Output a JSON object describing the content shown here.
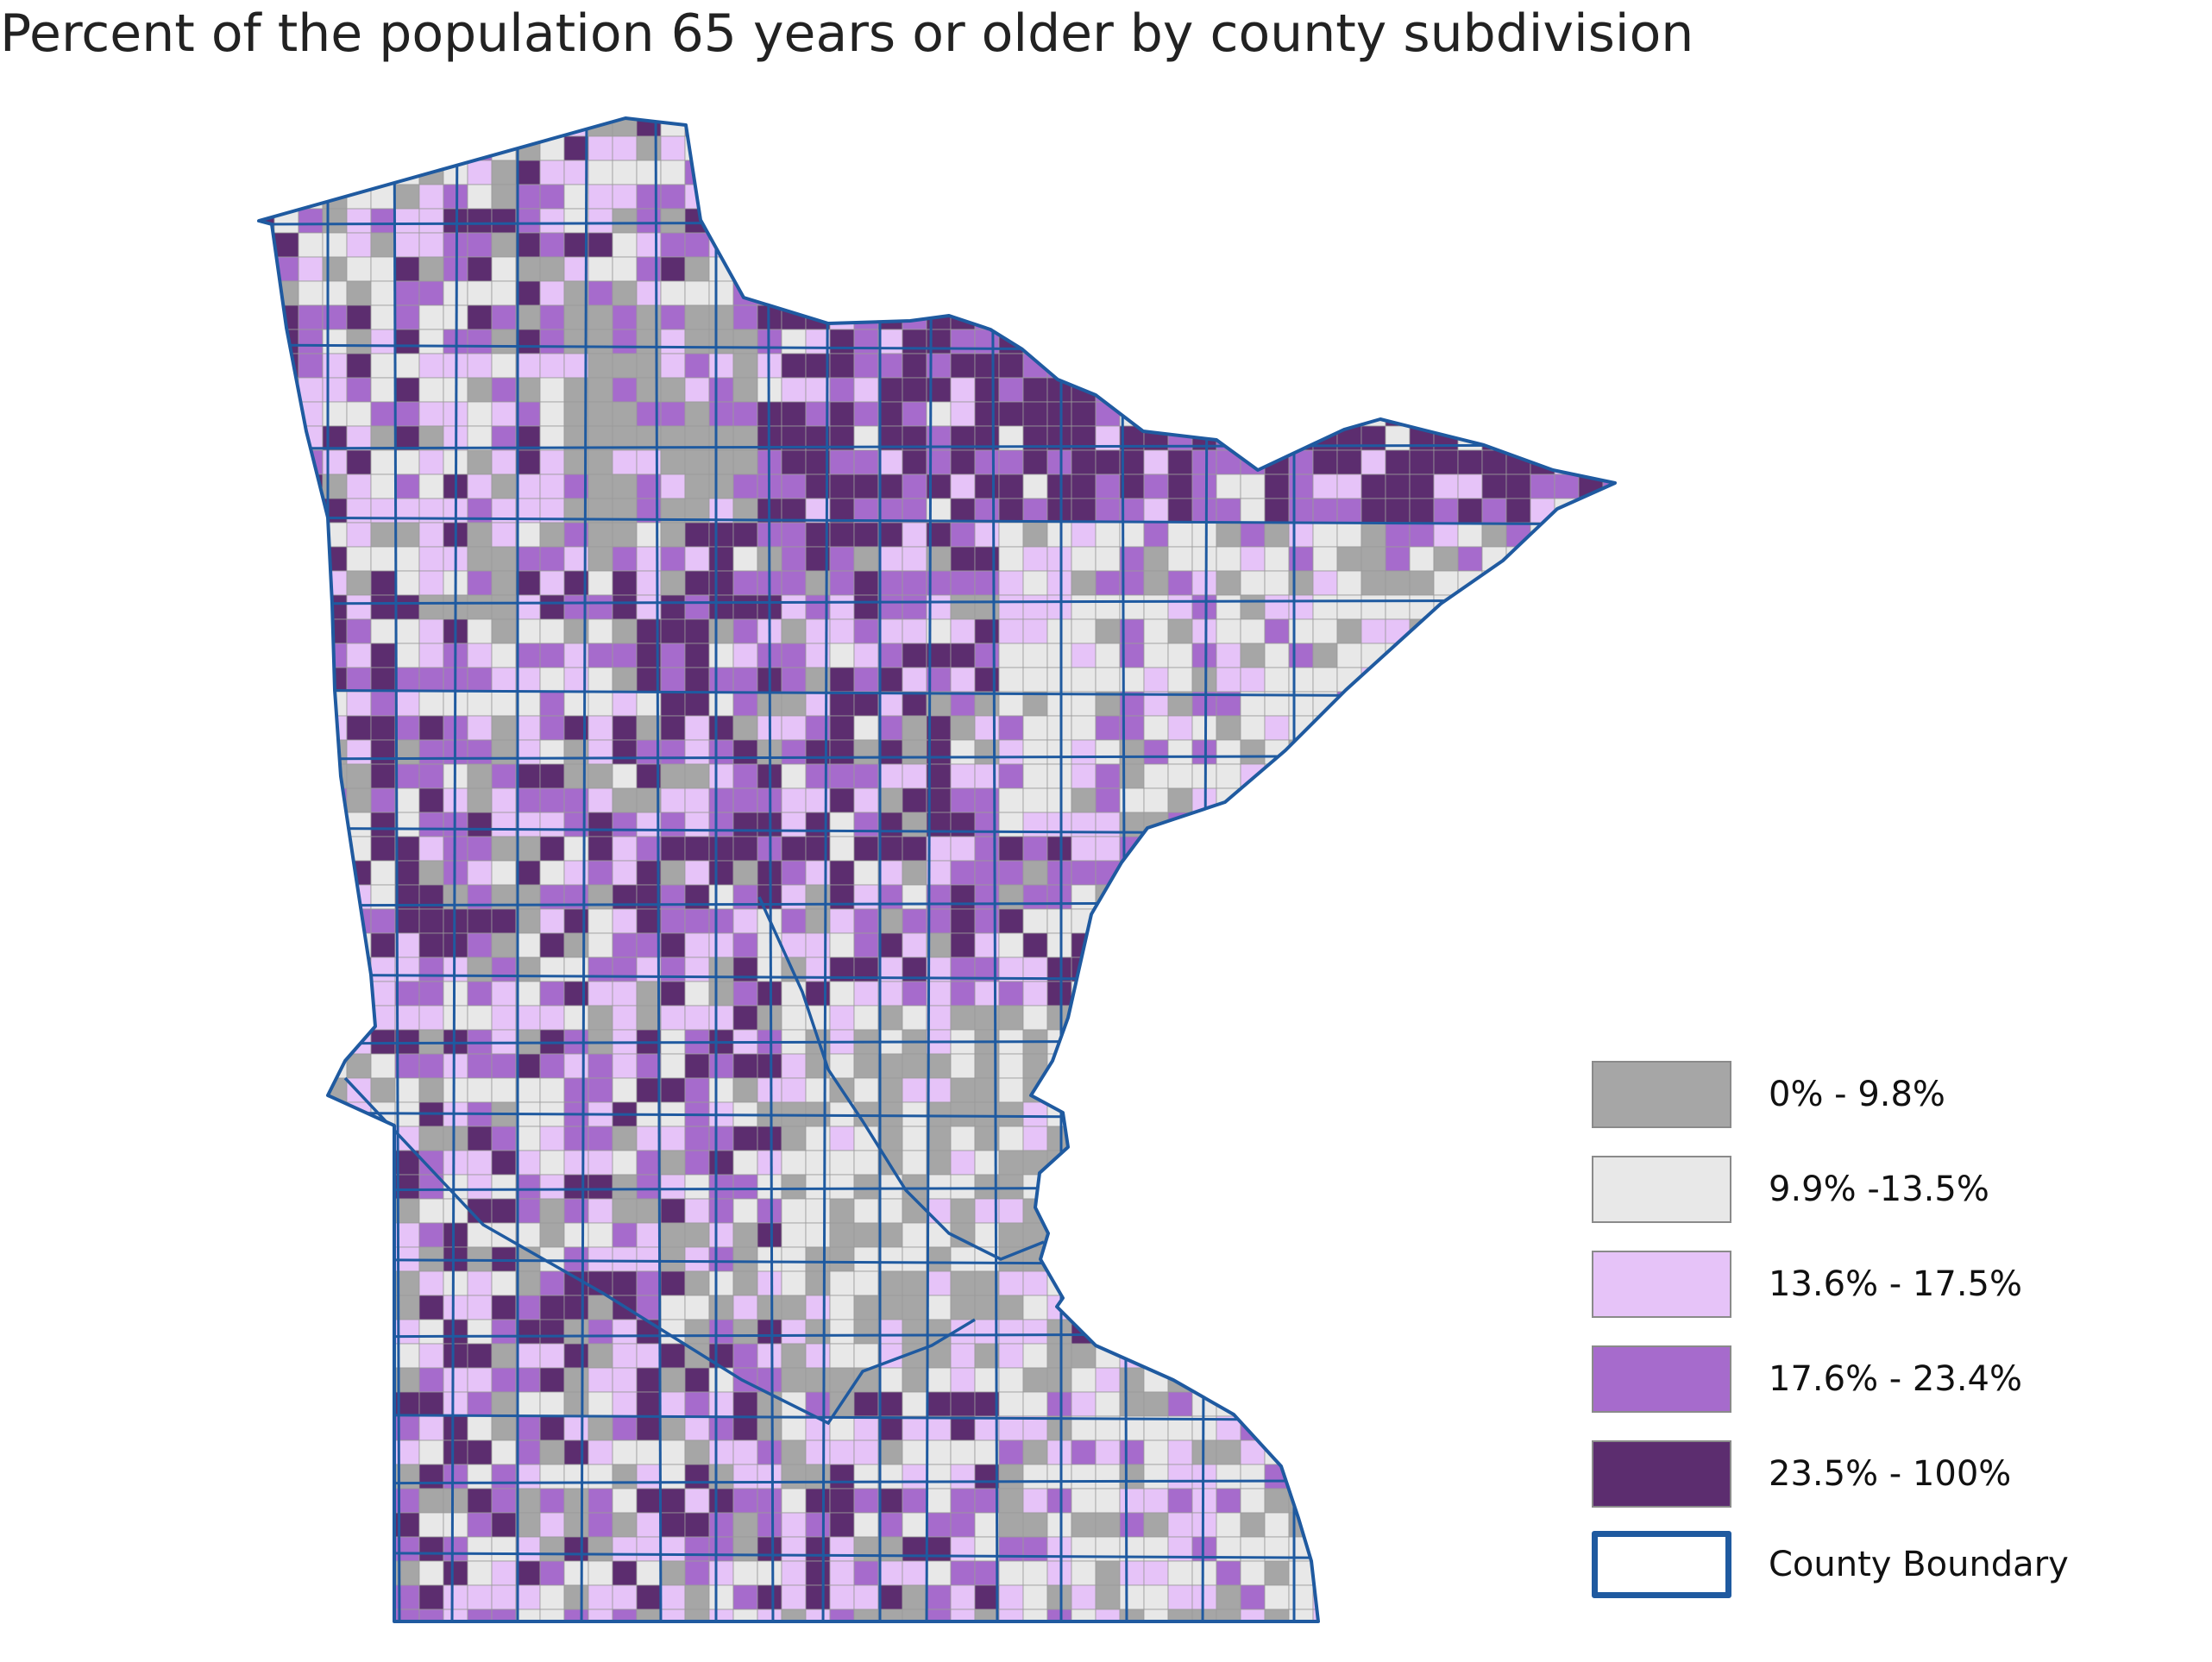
{
  "title": "Percent of the population 65 years or older by county subdivision",
  "colors": {
    "class_1": "#a6a6a6",
    "class_2": "#e8e8e8",
    "class_3": "#e6c3f8",
    "class_4": "#a66bcc",
    "class_5": "#5c2d6f",
    "county_boundary": "#1f5aa0",
    "subdivision_line": "#9a9a9a"
  },
  "legend": {
    "items": [
      {
        "label": "0% - 9.8%",
        "color": "#a6a6a6"
      },
      {
        "label": "9.9% -13.5%",
        "color": "#e8e8e8"
      },
      {
        "label": "13.6% - 17.5%",
        "color": "#e6c3f8"
      },
      {
        "label": "17.6% - 23.4%",
        "color": "#a66bcc"
      },
      {
        "label": "23.5% - 100%",
        "color": "#5c2d6f"
      }
    ],
    "boundary_label": "County Boundary"
  }
}
